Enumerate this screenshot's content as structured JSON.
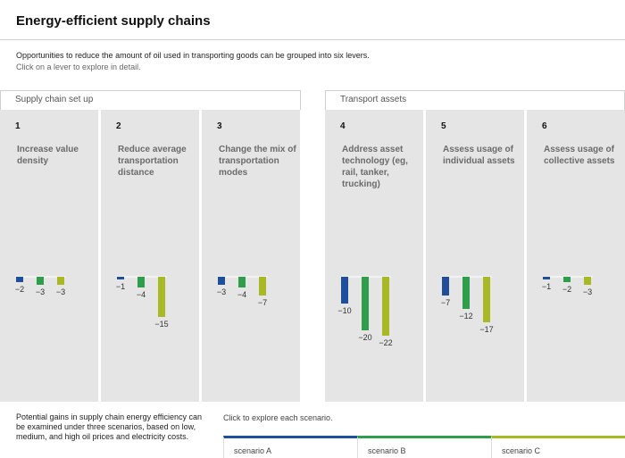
{
  "title": "Energy-efficient supply chains",
  "intro": "Opportunities to reduce the amount of oil used in transporting goods can be grouped into six levers.",
  "hint": "Click on a lever to explore in detail.",
  "groups": {
    "supply": "Supply chain set up",
    "transport": "Transport assets"
  },
  "colors": {
    "scenario_a": "#1f4e9a",
    "scenario_b": "#2e9e4a",
    "scenario_c": "#a9b825"
  },
  "levers": [
    {
      "num": "1",
      "label": "Increase value density"
    },
    {
      "num": "2",
      "label": "Reduce average transportation distance"
    },
    {
      "num": "3",
      "label": "Change the mix of transportation modes"
    },
    {
      "num": "4",
      "label": "Address asset technology (eg, rail, tanker, trucking)"
    },
    {
      "num": "5",
      "label": "Assess usage of individual assets"
    },
    {
      "num": "6",
      "label": "Assess usage of collective assets"
    }
  ],
  "chart_data": {
    "type": "bar",
    "categories": [
      "1",
      "2",
      "3",
      "4",
      "5",
      "6"
    ],
    "series": [
      {
        "name": "scenario A",
        "values": [
          -2,
          -1,
          -3,
          -10,
          -7,
          -1
        ]
      },
      {
        "name": "scenario B",
        "values": [
          -3,
          -4,
          -4,
          -20,
          -12,
          -2
        ]
      },
      {
        "name": "scenario C",
        "values": [
          -3,
          -15,
          -7,
          -22,
          -17,
          -3
        ]
      }
    ],
    "value_labels": [
      [
        "−2",
        "−3",
        "−3"
      ],
      [
        "−1",
        "−4",
        "−15"
      ],
      [
        "−3",
        "−4",
        "−7"
      ],
      [
        "−10",
        "−20",
        "−22"
      ],
      [
        "−7",
        "−12",
        "−17"
      ],
      [
        "−1",
        "−2",
        "−3"
      ]
    ]
  },
  "footnote": "Potential gains in supply chain energy efficiency can be examined under three scenarios, based on low, medium, and high oil prices and electricity costs.",
  "scenario_hint": "Click to explore each scenario.",
  "scenarios": [
    "scenario A",
    "scenario B",
    "scenario C"
  ]
}
